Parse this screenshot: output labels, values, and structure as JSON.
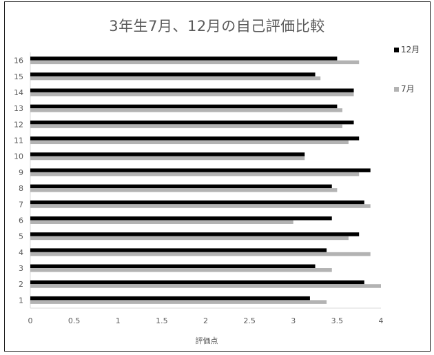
{
  "chart_data": {
    "type": "bar",
    "orientation": "horizontal",
    "title": "3年生7月、12月の自己評価比較",
    "xlabel": "評価点",
    "ylabel": "",
    "xlim": [
      0,
      4
    ],
    "xticks": [
      0,
      0.5,
      1,
      1.5,
      2,
      2.5,
      3,
      3.5,
      4
    ],
    "xtick_labels": [
      "0",
      "0.5",
      "1",
      "1.5",
      "2",
      "2.5",
      "3",
      "3.5",
      "4"
    ],
    "categories": [
      "1",
      "2",
      "3",
      "4",
      "5",
      "6",
      "7",
      "8",
      "9",
      "10",
      "11",
      "12",
      "13",
      "14",
      "15",
      "16"
    ],
    "series": [
      {
        "name": "12月",
        "color": "#000000",
        "values": [
          3.19,
          3.81,
          3.25,
          3.38,
          3.75,
          3.44,
          3.81,
          3.44,
          3.88,
          3.13,
          3.75,
          3.69,
          3.5,
          3.69,
          3.25,
          3.5
        ]
      },
      {
        "name": "7月",
        "color": "#b3b3b3",
        "values": [
          3.38,
          4.0,
          3.44,
          3.88,
          3.63,
          3.0,
          3.88,
          3.5,
          3.75,
          3.13,
          3.63,
          3.56,
          3.56,
          3.69,
          3.31,
          3.75
        ]
      }
    ],
    "grid": false,
    "legend": "right"
  }
}
